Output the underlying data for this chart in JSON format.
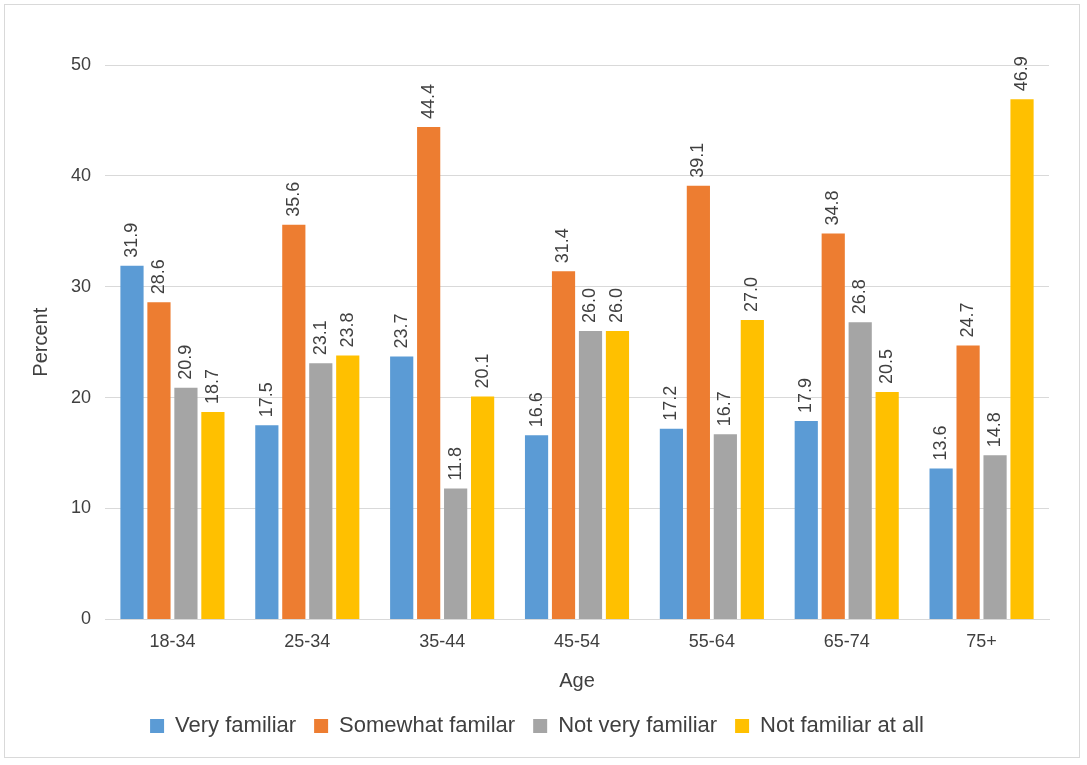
{
  "chart_data": {
    "type": "bar",
    "xlabel": "Age",
    "ylabel": "Percent",
    "categories": [
      "18-34",
      "25-34",
      "35-44",
      "45-54",
      "55-64",
      "65-74",
      "75+"
    ],
    "series": [
      {
        "name": "Very familiar",
        "color": "#5b9bd5",
        "values": [
          31.9,
          17.5,
          23.7,
          16.6,
          17.2,
          17.9,
          13.6
        ],
        "value_labels": [
          "31.9",
          "17.5",
          "23.7",
          "16.6",
          "17.2",
          "17.9",
          "13.6"
        ]
      },
      {
        "name": "Somewhat familar",
        "color": "#ed7d31",
        "values": [
          28.6,
          35.6,
          44.4,
          31.4,
          39.1,
          34.8,
          24.7
        ],
        "value_labels": [
          "28.6",
          "35.6",
          "44.4",
          "31.4",
          "39.1",
          "34.8",
          "24.7"
        ]
      },
      {
        "name": "Not very familiar",
        "color": "#a5a5a5",
        "values": [
          20.9,
          23.1,
          11.8,
          26.0,
          16.7,
          26.8,
          14.8
        ],
        "value_labels": [
          "20.9",
          "23.1",
          "11.8",
          "26.0",
          "16.7",
          "26.8",
          "14.8"
        ]
      },
      {
        "name": "Not familiar at all",
        "color": "#ffc000",
        "values": [
          18.7,
          23.8,
          20.1,
          26.0,
          27.0,
          20.5,
          46.9
        ],
        "value_labels": [
          "18.7",
          "23.8",
          "20.1",
          "26.0",
          "27.0",
          "20.5",
          "46.9"
        ]
      }
    ],
    "ylim": [
      0,
      50
    ],
    "yticks": [
      0,
      10,
      20,
      30,
      40,
      50
    ],
    "grid": "y",
    "legend": "bottom"
  }
}
